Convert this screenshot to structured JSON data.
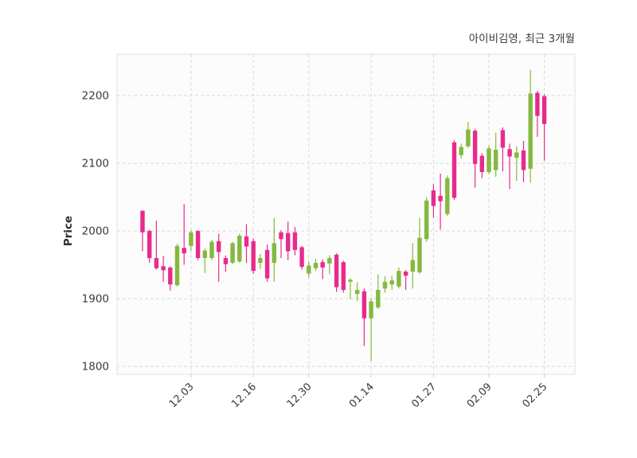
{
  "title": "아이비김영, 최근 3개월",
  "chart_data": {
    "type": "candlestick",
    "title": "아이비김영, 최근 3개월",
    "xlabel": "",
    "ylabel": "Price",
    "legend": "none",
    "grid": true,
    "grid_style": "dashed",
    "ylim": [
      1788,
      2262
    ],
    "y_ticks": [
      1800,
      1900,
      2000,
      2100,
      2200
    ],
    "x_tick_labels": [
      "12.03",
      "12.16",
      "12.30",
      "01.14",
      "01.27",
      "02.09",
      "02.25"
    ],
    "x_tick_indices": [
      7,
      16,
      24,
      33,
      42,
      50,
      58
    ],
    "up_color": "#84B93F",
    "down_color": "#E92A8C",
    "candles_format": [
      "open",
      "high",
      "low",
      "close"
    ],
    "candles": [
      [
        2030,
        2030,
        1970,
        1998
      ],
      [
        2000,
        2002,
        1953,
        1960
      ],
      [
        1960,
        2015,
        1943,
        1945
      ],
      [
        1948,
        1963,
        1925,
        1942
      ],
      [
        1946,
        1948,
        1912,
        1921
      ],
      [
        1920,
        1981,
        1918,
        1978
      ],
      [
        1975,
        2040,
        1950,
        1967
      ],
      [
        1978,
        2001,
        1971,
        1998
      ],
      [
        2000,
        2001,
        1957,
        1960
      ],
      [
        1960,
        1974,
        1938,
        1971
      ],
      [
        1960,
        1987,
        1957,
        1984
      ],
      [
        1985,
        1996,
        1925,
        1969
      ],
      [
        1960,
        1964,
        1940,
        1951
      ],
      [
        1953,
        1984,
        1951,
        1982
      ],
      [
        1955,
        1996,
        1953,
        1993
      ],
      [
        1992,
        2010,
        1953,
        1977
      ],
      [
        1985,
        1989,
        1937,
        1941
      ],
      [
        1953,
        1966,
        1944,
        1960
      ],
      [
        1972,
        1980,
        1925,
        1930
      ],
      [
        1953,
        2019,
        1925,
        1982
      ],
      [
        1998,
        2001,
        1960,
        1988
      ],
      [
        1997,
        2014,
        1957,
        1970
      ],
      [
        1998,
        2006,
        1964,
        1972
      ],
      [
        1976,
        1978,
        1943,
        1947
      ],
      [
        1937,
        1955,
        1931,
        1949
      ],
      [
        1945,
        1959,
        1941,
        1953
      ],
      [
        1954,
        1958,
        1929,
        1946
      ],
      [
        1952,
        1964,
        1936,
        1960
      ],
      [
        1965,
        1967,
        1910,
        1917
      ],
      [
        1954,
        1956,
        1909,
        1913
      ],
      [
        1925,
        1930,
        1899,
        1928
      ],
      [
        1907,
        1924,
        1897,
        1913
      ],
      [
        1911,
        1915,
        1830,
        1871
      ],
      [
        1871,
        1901,
        1808,
        1896
      ],
      [
        1887,
        1936,
        1885,
        1913
      ],
      [
        1915,
        1933,
        1909,
        1925
      ],
      [
        1921,
        1934,
        1913,
        1927
      ],
      [
        1918,
        1946,
        1915,
        1941
      ],
      [
        1940,
        1942,
        1913,
        1934
      ],
      [
        1940,
        1982,
        1915,
        1957
      ],
      [
        1939,
        2019,
        1937,
        1990
      ],
      [
        1988,
        2050,
        1984,
        2045
      ],
      [
        2060,
        2069,
        2020,
        2037
      ],
      [
        2052,
        2085,
        2002,
        2044
      ],
      [
        2025,
        2082,
        2022,
        2078
      ],
      [
        2131,
        2134,
        2046,
        2049
      ],
      [
        2112,
        2129,
        2107,
        2124
      ],
      [
        2125,
        2161,
        2123,
        2150
      ],
      [
        2148,
        2151,
        2064,
        2099
      ],
      [
        2111,
        2115,
        2078,
        2087
      ],
      [
        2087,
        2126,
        2084,
        2122
      ],
      [
        2090,
        2145,
        2080,
        2120
      ],
      [
        2149,
        2153,
        2088,
        2123
      ],
      [
        2121,
        2129,
        2062,
        2110
      ],
      [
        2108,
        2125,
        2074,
        2116
      ],
      [
        2119,
        2133,
        2072,
        2090
      ],
      [
        2092,
        2238,
        2071,
        2203
      ],
      [
        2204,
        2207,
        2139,
        2170
      ],
      [
        2199,
        2202,
        2104,
        2158
      ]
    ],
    "colors": {
      "plot_background": "#fcfcfc",
      "plot_border": "#e5e5e5",
      "gridline": "#d9d9d9",
      "tick_text": "#3a3a3a",
      "title_text": "#3d3d3d"
    }
  }
}
